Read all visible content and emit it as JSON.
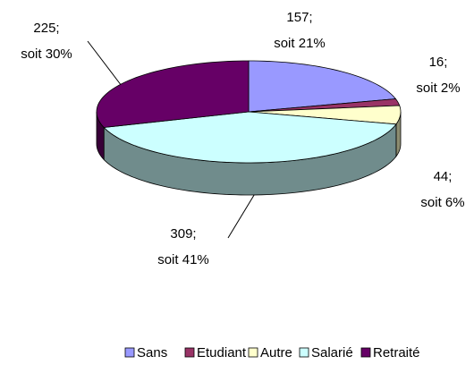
{
  "chart_data": {
    "type": "pie",
    "categories": [
      "Sans",
      "Etudiant",
      "Autre",
      "Salarié",
      "Retraité"
    ],
    "values": [
      157,
      16,
      44,
      309,
      225
    ],
    "value_labels": [
      [
        "157;",
        "soit 21%"
      ],
      [
        "16;",
        "soit 2%"
      ],
      [
        "44;",
        "soit 6%"
      ],
      [
        "309;",
        "soit 41%"
      ],
      [
        "225;",
        "soit 30%"
      ]
    ],
    "colors": [
      "#9999ff",
      "#993366",
      "#ffffcc",
      "#ccffff",
      "#660066"
    ],
    "legend": "bottom"
  }
}
